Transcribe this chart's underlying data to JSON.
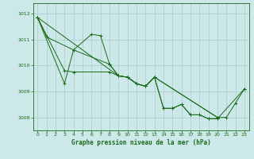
{
  "xlabel": "Graphe pression niveau de la mer (hPa)",
  "ylim": [
    1007.5,
    1012.4
  ],
  "xlim": [
    -0.5,
    23.5
  ],
  "yticks": [
    1008,
    1009,
    1010,
    1011,
    1012
  ],
  "xticks": [
    0,
    1,
    2,
    3,
    4,
    5,
    6,
    7,
    8,
    9,
    10,
    11,
    12,
    13,
    14,
    15,
    16,
    17,
    18,
    19,
    20,
    21,
    22,
    23
  ],
  "bg_color": "#cce8e8",
  "grid_color": "#aacccc",
  "line_color": "#1a6b1a",
  "series1_x": [
    0,
    1,
    4,
    6,
    7,
    8,
    9,
    10,
    11,
    12,
    13,
    14,
    15,
    16,
    17,
    18,
    19,
    20,
    23
  ],
  "series1_y": [
    1011.85,
    1011.1,
    1010.6,
    1011.2,
    1011.15,
    1010.05,
    1009.6,
    1009.55,
    1009.3,
    1009.2,
    1009.55,
    1008.35,
    1008.35,
    1008.5,
    1008.1,
    1008.1,
    1007.95,
    1007.95,
    1009.1
  ],
  "series2_x": [
    0,
    3,
    4,
    8,
    9,
    10,
    11,
    12,
    13,
    20
  ],
  "series2_y": [
    1011.85,
    1009.8,
    1009.75,
    1009.75,
    1009.6,
    1009.55,
    1009.3,
    1009.2,
    1009.55,
    1008.0
  ],
  "series3_x": [
    0,
    3,
    4,
    8,
    9,
    10,
    11,
    12,
    13,
    20,
    21,
    22,
    23
  ],
  "series3_y": [
    1011.85,
    1009.3,
    1010.6,
    1010.05,
    1009.6,
    1009.55,
    1009.3,
    1009.2,
    1009.55,
    1008.0,
    1008.0,
    1008.55,
    1009.1
  ],
  "series4_x": [
    0,
    9,
    10,
    11,
    12,
    13,
    14,
    15,
    16,
    17,
    18,
    19,
    20
  ],
  "series4_y": [
    1011.85,
    1009.6,
    1009.55,
    1009.3,
    1009.2,
    1009.55,
    1008.35,
    1008.35,
    1008.5,
    1008.1,
    1008.1,
    1007.95,
    1007.95
  ]
}
